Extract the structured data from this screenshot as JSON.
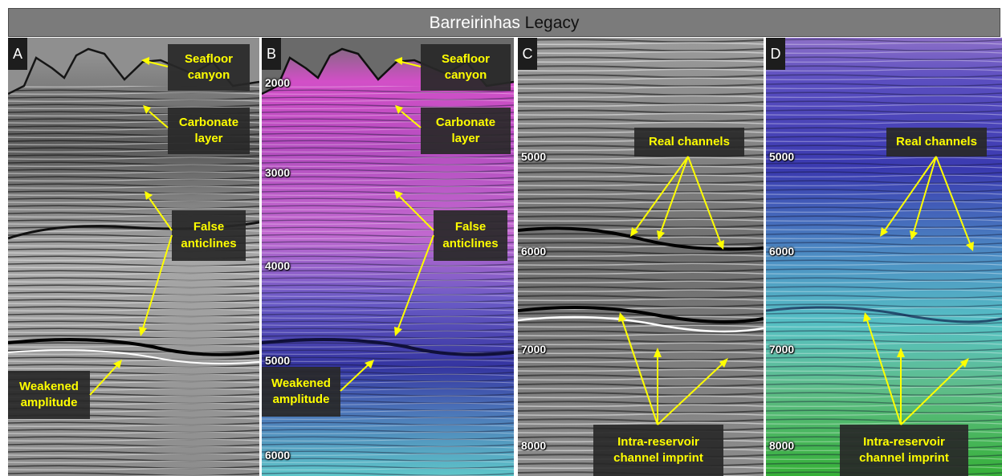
{
  "title": {
    "part1": "Barreirinhas",
    "part2": "Legacy"
  },
  "colors": {
    "title_part1": "#ffffff",
    "title_part2": "#111111",
    "annotation_text": "#ffff00",
    "arrow": "#ffff00"
  },
  "panels": {
    "A": {
      "label": "A",
      "ticks": [],
      "callouts": {
        "seafloor": [
          "Seafloor",
          "canyon"
        ],
        "carbonate": [
          "Carbonate",
          "layer"
        ],
        "false_anticlines": [
          "False",
          "anticlines"
        ],
        "weakened": [
          "Weakened",
          "amplitude"
        ]
      }
    },
    "B": {
      "label": "B",
      "ticks": [
        "2000",
        "3000",
        "4000",
        "5000",
        "6000"
      ],
      "callouts": {
        "seafloor": [
          "Seafloor",
          "canyon"
        ],
        "carbonate": [
          "Carbonate",
          "layer"
        ],
        "false_anticlines": [
          "False",
          "anticlines"
        ],
        "weakened": [
          "Weakened",
          "amplitude"
        ]
      }
    },
    "C": {
      "label": "C",
      "ticks": [
        "5000",
        "6000",
        "7000",
        "8000"
      ],
      "callouts": {
        "real": [
          "Real channels"
        ],
        "imprint": [
          "Intra-reservoir",
          "channel imprint"
        ]
      }
    },
    "D": {
      "label": "D",
      "ticks": [
        "5000",
        "6000",
        "7000",
        "8000"
      ],
      "callouts": {
        "real": [
          "Real channels"
        ],
        "imprint": [
          "Intra-reservoir",
          "channel imprint"
        ]
      }
    }
  }
}
